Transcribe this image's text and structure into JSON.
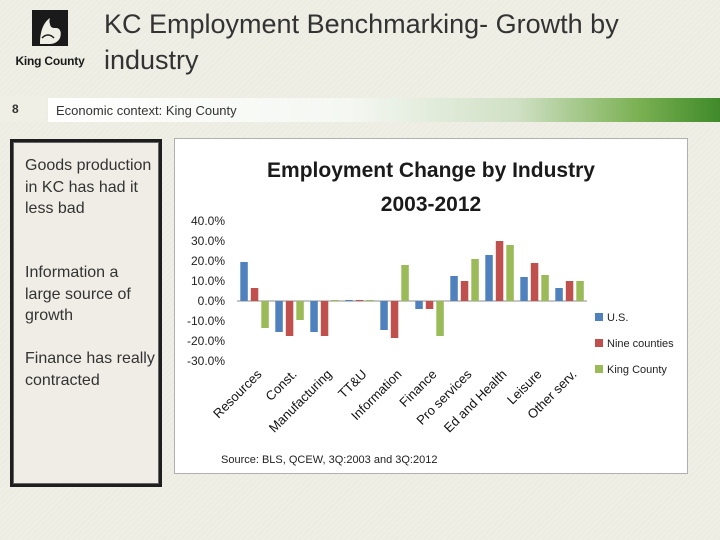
{
  "header": {
    "logo_text": "King County",
    "title": "KC Employment Benchmarking- Growth by industry"
  },
  "section": {
    "slide_number": "8",
    "label": "Economic context:  King County"
  },
  "bullets": [
    "Goods production in KC has had it less bad",
    "Information a large source of growth",
    "Finance has really contracted"
  ],
  "colors": {
    "accent_green": "#4e9a34",
    "us": "#4f81bd",
    "nine_counties": "#c0504d",
    "king_county": "#9bbb59"
  },
  "chart_data": {
    "type": "bar",
    "title_lines": [
      "Employment Change by Industry",
      "2003-2012"
    ],
    "categories": [
      "Resources",
      "Const.",
      "Manufacturing",
      "TT&U",
      "Information",
      "Finance",
      "Pro services",
      "Ed and Health",
      "Leisure",
      "Other serv."
    ],
    "series": [
      {
        "name": "U.S.",
        "color": "#4f81bd",
        "values": [
          19.5,
          -15.5,
          -15.5,
          0.5,
          -14.5,
          -4.0,
          12.5,
          23.0,
          12.0,
          6.5
        ]
      },
      {
        "name": "Nine counties",
        "color": "#c0504d",
        "values": [
          6.5,
          -17.5,
          -17.5,
          0.5,
          -18.5,
          -4.0,
          10.0,
          30.0,
          19.0,
          10.0
        ]
      },
      {
        "name": "King County",
        "color": "#9bbb59",
        "values": [
          -13.5,
          -9.5,
          0.5,
          0.5,
          18.0,
          -17.5,
          21.0,
          28.0,
          13.0,
          10.0
        ]
      }
    ],
    "ylim": [
      -30,
      40
    ],
    "yticks": [
      40,
      30,
      20,
      10,
      0,
      -10,
      -20,
      -30
    ],
    "ytick_labels": [
      "40.0%",
      "30.0%",
      "20.0%",
      "10.0%",
      "0.0%",
      "-10.0%",
      "-20.0%",
      "-30.0%"
    ],
    "grid": false,
    "legend_position": "right",
    "source": "Source: BLS, QCEW, 3Q:2003 and 3Q:2012"
  }
}
